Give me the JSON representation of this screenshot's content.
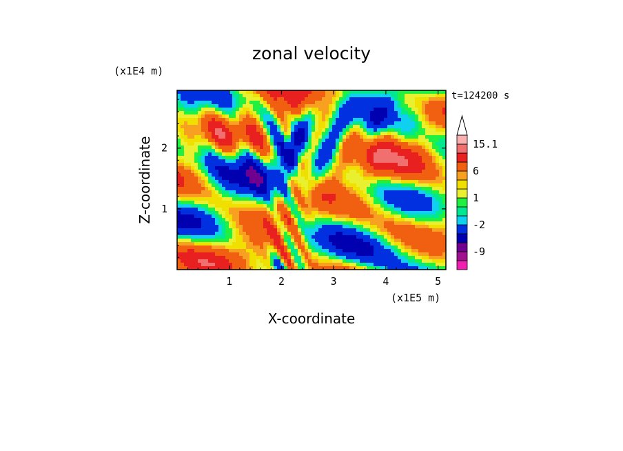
{
  "chart_data": {
    "type": "heatmap",
    "title": "zonal velocity",
    "xlabel": "X-coordinate",
    "ylabel": "Z-coordinate",
    "x_unit": "(x1E5 m)",
    "y_unit": "(x1E4 m)",
    "time_label": "t=124200 s",
    "xlim": [
      0,
      5.15
    ],
    "ylim": [
      0,
      2.95
    ],
    "x_ticks": [
      "1",
      "2",
      "3",
      "4",
      "5"
    ],
    "y_ticks": [
      "1",
      "2"
    ],
    "colorbar": {
      "labels": [
        "15.1",
        "6",
        "1",
        "-2",
        "-9"
      ],
      "label_values": [
        15.1,
        6,
        1,
        -2,
        -9
      ],
      "levels": [
        -15,
        -12,
        -9,
        -6,
        -3,
        -2,
        -1,
        0,
        1,
        2,
        3,
        6,
        9,
        12,
        15.1
      ],
      "colors": [
        "#f020b0",
        "#a01090",
        "#700090",
        "#0000b0",
        "#0030e0",
        "#10d0f0",
        "#00e890",
        "#20f040",
        "#e8f030",
        "#f0e000",
        "#f8a020",
        "#f06010",
        "#e82020",
        "#f07070",
        "#f8b0b0",
        "#ffffff"
      ]
    },
    "grid": false,
    "colorbar_placement": "right"
  }
}
